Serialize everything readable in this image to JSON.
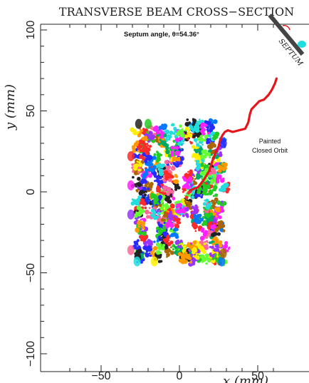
{
  "chart_data": {
    "type": "scatter",
    "title": "TRANSVERSE BEAM CROSS−SECTION",
    "xlabel": "x (mm)",
    "ylabel": "y (mm)",
    "xlim": [
      -75,
      62
    ],
    "ylim": [
      -110,
      105
    ],
    "x_ticks": [
      -50,
      0,
      50
    ],
    "y_ticks": [
      -100,
      -50,
      0,
      50,
      100
    ],
    "grid": false,
    "subtitle": "Septum angle, θ=54.36°",
    "septum_label": "SEPTUM",
    "orbit_label": [
      "Painted",
      "Closed Orbit"
    ],
    "beam_distribution": {
      "x_range": [
        -30,
        32
      ],
      "y_range": [
        -45,
        45
      ],
      "description_colors": [
        "#ff2a2a",
        "#22cc22",
        "#2a2aff",
        "#ff22ff",
        "#22dddd",
        "#ff9900",
        "#9933ff",
        "#ffee00",
        "#00aa66",
        "#ff6699",
        "#0077ff",
        "#66ff33",
        "#222222",
        "#aa6600"
      ]
    },
    "series": [
      {
        "name": "Painted Closed Orbit",
        "color": "#e8141c",
        "x": [
          7,
          12,
          16,
          19,
          21,
          23,
          25,
          26,
          27.5,
          29,
          31,
          34,
          38,
          42,
          44,
          45,
          46,
          48,
          51,
          54,
          57,
          59,
          61,
          62
        ],
        "y": [
          1,
          3,
          8,
          13,
          19,
          24,
          28,
          32,
          35,
          37,
          38,
          37,
          38,
          39,
          43,
          48,
          51,
          53,
          56,
          57,
          60,
          63,
          67,
          70
        ]
      }
    ],
    "septum_angle_deg": 54.36
  }
}
